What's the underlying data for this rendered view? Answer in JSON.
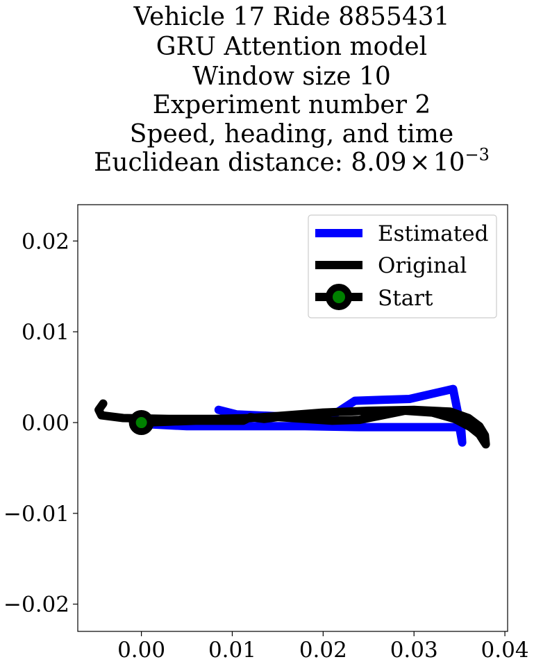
{
  "chart_data": {
    "type": "line",
    "title_lines": [
      "Vehicle 17 Ride 8855431",
      "GRU Attention model",
      "Window size 10",
      "Experiment number 2",
      "Speed, heading, and time"
    ],
    "title_metric": {
      "prefix": "Euclidean distance: 8.09",
      "times": "×",
      "base": "10",
      "exponent": "−3"
    },
    "xlabel": "",
    "ylabel": "",
    "xlim": [
      -0.007,
      0.0403
    ],
    "ylim": [
      -0.023,
      0.024
    ],
    "xticks": [
      0.0,
      0.01,
      0.02,
      0.03,
      0.04
    ],
    "xtick_labels": [
      "0.00",
      "0.01",
      "0.02",
      "0.03",
      "0.04"
    ],
    "yticks": [
      0.02,
      0.01,
      0.0,
      -0.01,
      -0.02
    ],
    "ytick_labels": [
      "0.02",
      "0.01",
      "0.00",
      "−0.01",
      "−0.02"
    ],
    "grid": false,
    "legend_position": "upper right",
    "series": [
      {
        "name": "Estimated",
        "color": "#0000ff",
        "x": [
          0.0085,
          0.0105,
          0.015,
          0.018,
          0.0215,
          0.0235,
          0.0265,
          0.0295,
          0.0343,
          0.0352,
          0.0353,
          0.035,
          0.03,
          0.024,
          0.018,
          0.01,
          0.005,
          0.0012,
          0.0
        ],
        "y": [
          0.0014,
          0.0009,
          0.0007,
          0.0007,
          0.0011,
          0.0024,
          0.0025,
          0.0026,
          0.0037,
          -0.0008,
          -0.0022,
          -0.0005,
          -0.0005,
          -0.0005,
          -0.0004,
          -0.0004,
          -0.0004,
          -0.0002,
          0.0
        ]
      },
      {
        "name": "Original",
        "color": "#000000",
        "x": [
          -0.0042,
          -0.0047,
          -0.0044,
          -0.002,
          0.003,
          0.008,
          0.012,
          0.016,
          0.02,
          0.025,
          0.03,
          0.034,
          0.036,
          0.0372,
          0.0378,
          0.0379,
          0.0377,
          0.0372,
          0.0362,
          0.0345,
          0.032,
          0.029,
          0.0265,
          0.024,
          0.021,
          0.018,
          0.015,
          0.0135,
          0.012,
          0.0112,
          0.009,
          0.006,
          0.003,
          0.0005,
          -0.0005
        ],
        "y": [
          0.0021,
          0.0014,
          0.0008,
          0.0005,
          0.0004,
          0.0004,
          0.0005,
          0.0008,
          0.0011,
          0.0013,
          0.0014,
          0.0012,
          0.0005,
          -0.0004,
          -0.0014,
          -0.0024,
          -0.0021,
          -0.0013,
          -0.0005,
          0.0004,
          0.0011,
          0.0013,
          0.0008,
          0.0003,
          0.0002,
          0.0004,
          0.0006,
          0.0004,
          0.0006,
          0.0002,
          0.0002,
          0.0002,
          0.0001,
          0.0,
          0.0
        ]
      }
    ],
    "start_marker": {
      "name": "Start",
      "x": 0.0,
      "y": 0.0,
      "edge_color": "#000000",
      "face_color": "#008000"
    }
  }
}
